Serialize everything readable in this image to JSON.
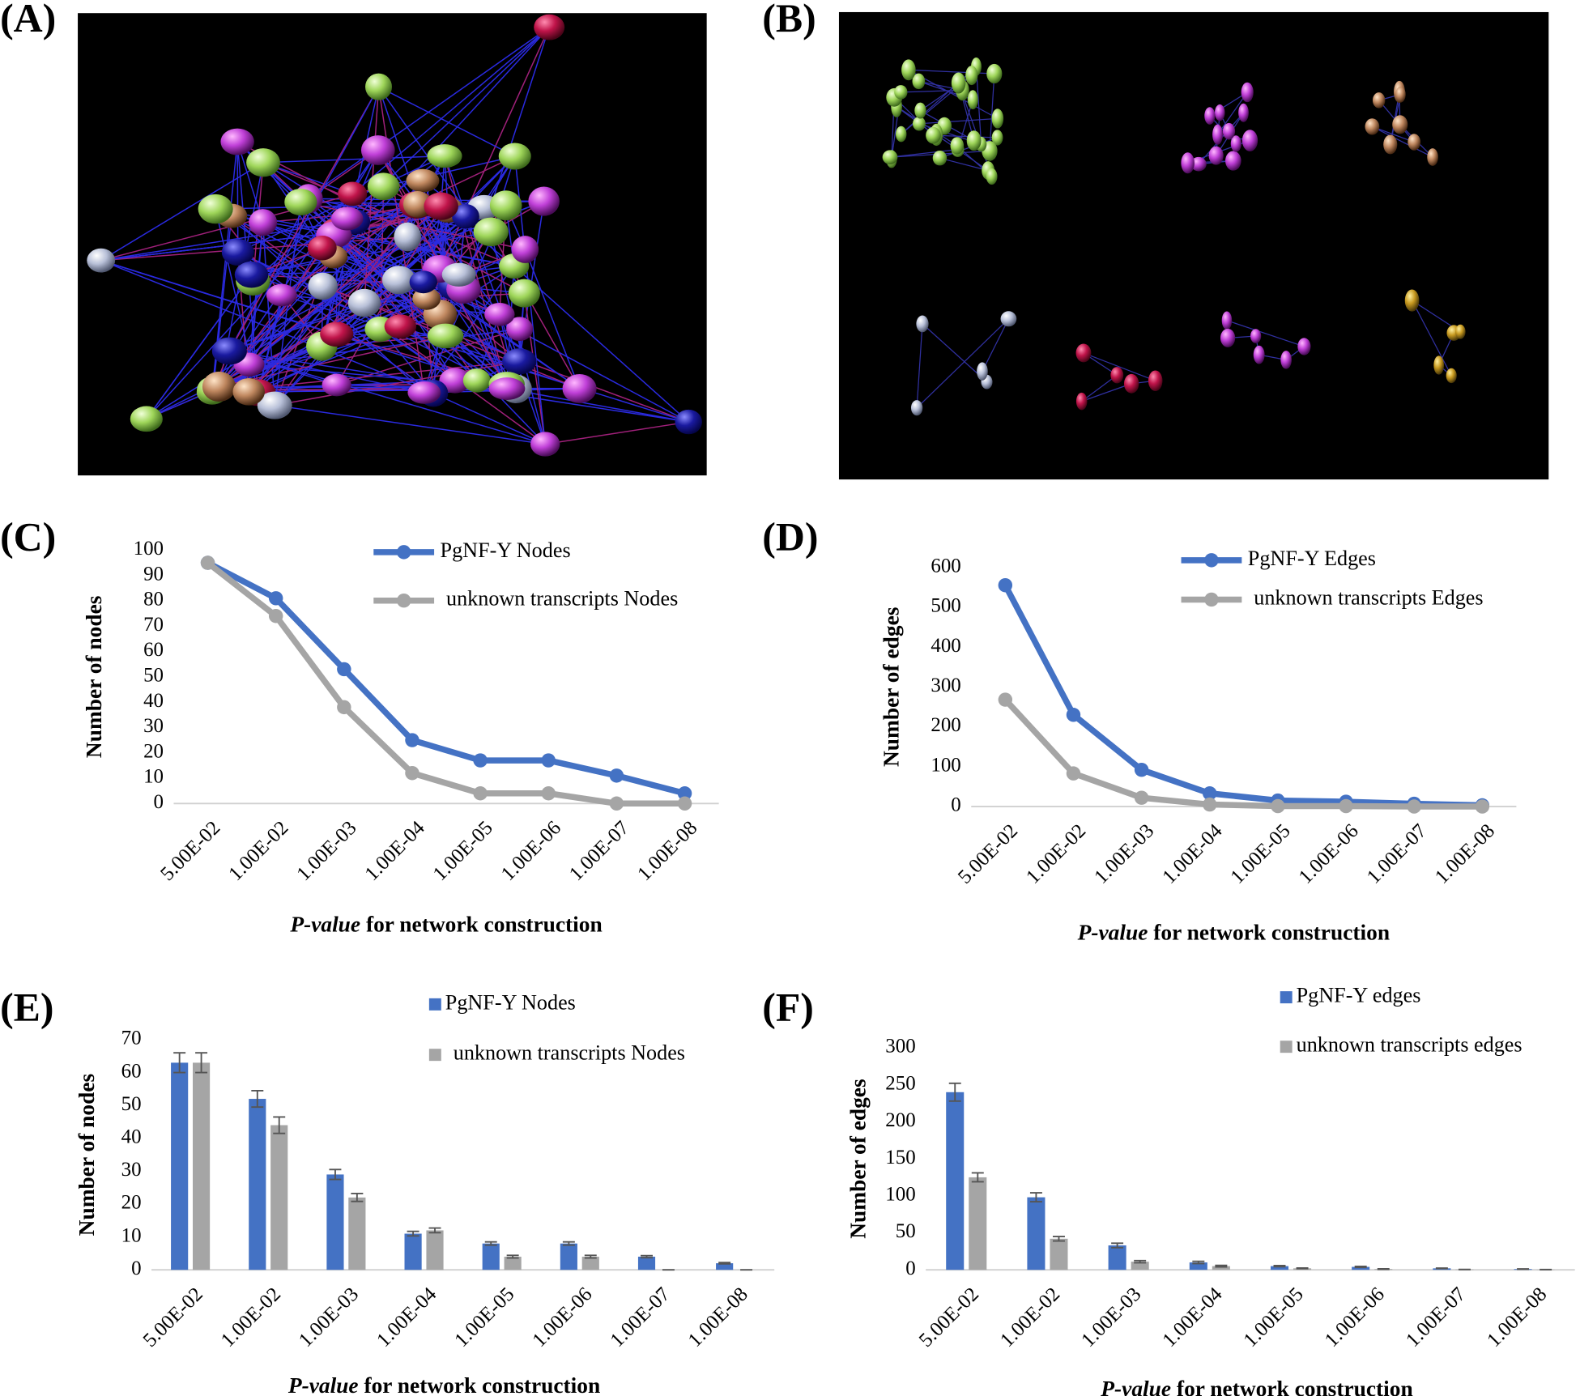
{
  "panel_labels": [
    "(A)",
    "(B)",
    "(C)",
    "(D)",
    "(E)",
    "(F)"
  ],
  "chart_data": [
    {
      "type": "line",
      "ylabel": "Number of nodes",
      "xlabel_italic": "P-value",
      "xlabel_rest": "for network construction",
      "categories": [
        "5.00E-02",
        "1.00E-02",
        "1.00E-03",
        "1.00E-04",
        "1.00E-05",
        "1.00E-06",
        "1.00E-07",
        "1.00E-08"
      ],
      "series": [
        {
          "name": "PgNF-Y Nodes",
          "color": "#4472c4",
          "values": [
            95,
            81,
            53,
            25,
            17,
            17,
            11,
            4
          ]
        },
        {
          "name": "unknown transcripts Nodes",
          "color": "#a5a5a5",
          "values": [
            95,
            74,
            38,
            12,
            4,
            4,
            0,
            0
          ]
        }
      ],
      "ylim": [
        0,
        100
      ],
      "yticks": [
        0,
        10,
        20,
        30,
        40,
        50,
        60,
        70,
        80,
        90,
        100
      ]
    },
    {
      "type": "line",
      "ylabel": "Number of edges",
      "xlabel_italic": "P-value",
      "xlabel_rest": "for network construction",
      "categories": [
        "5.00E-02",
        "1.00E-02",
        "1.00E-03",
        "1.00E-04",
        "1.00E-05",
        "1.00E-06",
        "1.00E-07",
        "1.00E-08"
      ],
      "series": [
        {
          "name": "PgNF-Y Edges",
          "color": "#4472c4",
          "values": [
            555,
            230,
            92,
            33,
            15,
            12,
            7,
            3
          ]
        },
        {
          "name": "unknown transcripts Edges",
          "color": "#a5a5a5",
          "values": [
            268,
            83,
            22,
            5,
            1,
            1,
            0,
            0
          ]
        }
      ],
      "ylim": [
        0,
        600
      ],
      "yticks": [
        0,
        100,
        200,
        300,
        400,
        500,
        600
      ]
    },
    {
      "type": "bar",
      "ylabel": "Number of nodes",
      "xlabel_italic": "P-value",
      "xlabel_rest": "for network construction",
      "categories": [
        "5.00E-02",
        "1.00E-02",
        "1.00E-03",
        "1.00E-04",
        "1.00E-05",
        "1.00E-06",
        "1.00E-07",
        "1.00E-08"
      ],
      "series": [
        {
          "name": "PgNF-Y Nodes",
          "color": "#4472c4",
          "values": [
            63,
            52,
            29,
            11,
            8,
            8,
            4,
            2
          ],
          "errors": [
            3,
            2.5,
            1.5,
            0.7,
            0.5,
            0.5,
            0.3,
            0.2
          ]
        },
        {
          "name": "unknown transcripts Nodes",
          "color": "#a5a5a5",
          "values": [
            63,
            44,
            22,
            12,
            4,
            4,
            0,
            0
          ],
          "errors": [
            3,
            2.5,
            1.2,
            0.7,
            0.4,
            0.4,
            0,
            0
          ]
        }
      ],
      "ylim": [
        0,
        70
      ],
      "yticks": [
        0,
        10,
        20,
        30,
        40,
        50,
        60,
        70
      ]
    },
    {
      "type": "bar",
      "ylabel": "Number of edges",
      "xlabel_italic": "P-value",
      "xlabel_rest": "for network construction",
      "categories": [
        "5.00E-02",
        "1.00E-02",
        "1.00E-03",
        "1.00E-04",
        "1.00E-05",
        "1.00E-06",
        "1.00E-07",
        "1.00E-08"
      ],
      "series": [
        {
          "name": "PgNF-Y edges",
          "color": "#4472c4",
          "values": [
            240,
            98,
            33,
            10,
            5,
            4,
            2,
            1
          ],
          "errors": [
            12,
            6,
            3,
            1.5,
            0.8,
            0.7,
            0.3,
            0.2
          ]
        },
        {
          "name": "unknown transcripts edges",
          "color": "#a5a5a5",
          "values": [
            125,
            42,
            11,
            5,
            2,
            1,
            0.5,
            0.3
          ],
          "errors": [
            6,
            3,
            1.5,
            1,
            0.4,
            0.3,
            0.1,
            0.1
          ]
        }
      ],
      "ylim": [
        0,
        300
      ],
      "yticks": [
        0,
        50,
        100,
        150,
        200,
        250,
        300
      ]
    }
  ]
}
